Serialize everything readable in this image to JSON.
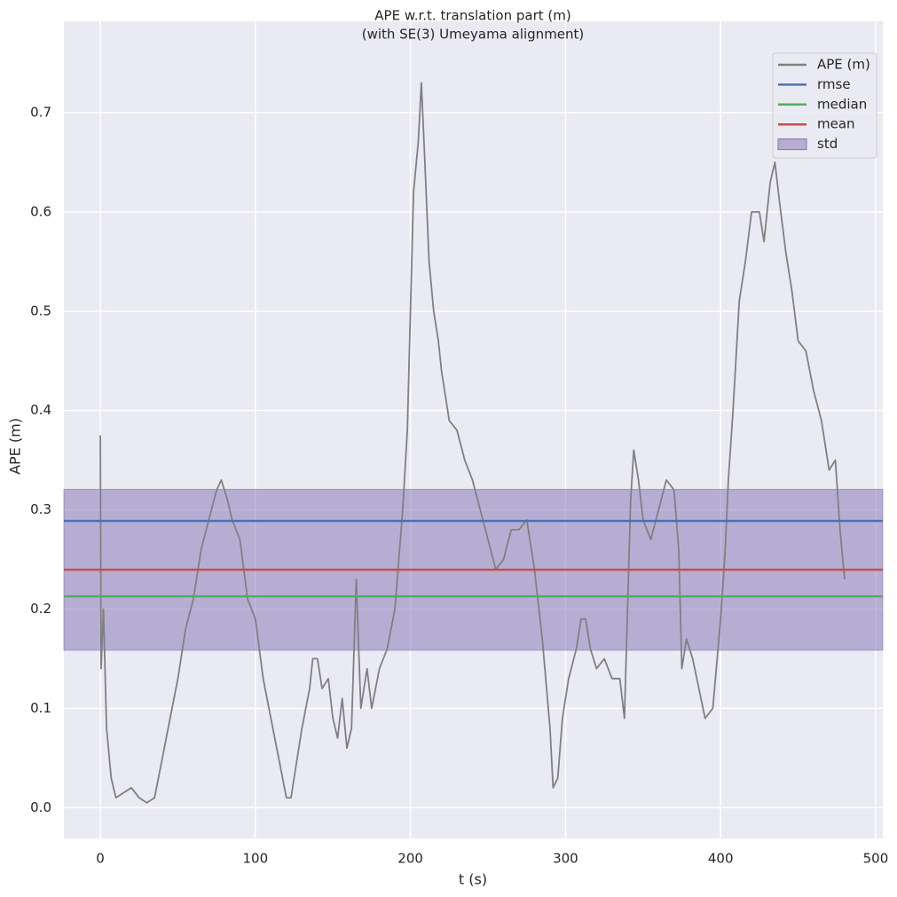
{
  "chart_data": {
    "type": "line",
    "title": "APE w.r.t. translation part (m)",
    "subtitle": "(with SE(3) Umeyama alignment)",
    "x_label": "t (s)",
    "y_label": "APE (m)",
    "xlim": [
      -23.5,
      504.6
    ],
    "ylim": [
      -0.031,
      0.792
    ],
    "xticks": [
      0,
      100,
      200,
      300,
      400,
      500
    ],
    "yticks": [
      {
        "value": 0,
        "label": "0.0"
      },
      0.1,
      0.2,
      0.3,
      0.4,
      0.5,
      0.6,
      0.7
    ],
    "grid": true,
    "legend": "upper right",
    "series": [
      {
        "name": "APE (m)",
        "color": "#808080",
        "x": [
          0,
          0.5,
          2,
          4,
          7,
          10,
          15,
          20,
          25,
          30,
          35,
          40,
          45,
          50,
          55,
          60,
          65,
          70,
          75,
          78,
          82,
          85,
          90,
          95,
          100,
          105,
          110,
          115,
          120,
          123,
          127,
          130,
          135,
          137,
          140,
          143,
          147,
          150,
          153,
          156,
          159,
          162,
          165,
          168,
          172,
          175,
          180,
          185,
          190,
          195,
          198,
          200,
          202,
          205,
          207,
          209,
          212,
          215,
          218,
          220,
          225,
          230,
          235,
          240,
          245,
          250,
          255,
          260,
          265,
          270,
          275,
          280,
          285,
          290,
          292,
          295,
          298,
          302,
          307,
          310,
          313,
          316,
          320,
          325,
          330,
          335,
          338,
          340,
          342,
          344,
          347,
          350,
          355,
          360,
          365,
          370,
          373,
          375,
          378,
          382,
          386,
          390,
          395,
          400,
          403,
          405,
          408,
          412,
          416,
          420,
          425,
          428,
          432,
          435,
          438,
          442,
          446,
          450,
          455,
          460,
          465,
          470,
          474,
          477,
          480
        ],
        "values": [
          0.375,
          0.14,
          0.2,
          0.08,
          0.03,
          0.01,
          0.015,
          0.02,
          0.01,
          0.005,
          0.01,
          0.05,
          0.09,
          0.13,
          0.18,
          0.21,
          0.26,
          0.29,
          0.32,
          0.33,
          0.31,
          0.29,
          0.27,
          0.21,
          0.19,
          0.13,
          0.09,
          0.05,
          0.01,
          0.01,
          0.05,
          0.08,
          0.12,
          0.15,
          0.15,
          0.12,
          0.13,
          0.09,
          0.07,
          0.11,
          0.06,
          0.08,
          0.23,
          0.1,
          0.14,
          0.1,
          0.14,
          0.16,
          0.2,
          0.3,
          0.38,
          0.5,
          0.62,
          0.67,
          0.73,
          0.66,
          0.55,
          0.5,
          0.47,
          0.44,
          0.39,
          0.38,
          0.35,
          0.33,
          0.3,
          0.27,
          0.24,
          0.25,
          0.28,
          0.28,
          0.29,
          0.24,
          0.17,
          0.08,
          0.02,
          0.03,
          0.09,
          0.13,
          0.16,
          0.19,
          0.19,
          0.16,
          0.14,
          0.15,
          0.13,
          0.13,
          0.09,
          0.2,
          0.31,
          0.36,
          0.33,
          0.29,
          0.27,
          0.3,
          0.33,
          0.32,
          0.26,
          0.14,
          0.17,
          0.15,
          0.12,
          0.09,
          0.1,
          0.19,
          0.26,
          0.33,
          0.4,
          0.51,
          0.55,
          0.6,
          0.6,
          0.57,
          0.63,
          0.65,
          0.61,
          0.56,
          0.52,
          0.47,
          0.46,
          0.42,
          0.39,
          0.34,
          0.35,
          0.28,
          0.23
        ]
      }
    ],
    "stats": [
      {
        "name": "rmse",
        "value": 0.2888,
        "color": "#4c72b0"
      },
      {
        "name": "median",
        "value": 0.2128,
        "color": "#55a868"
      },
      {
        "name": "mean",
        "value": 0.2396,
        "color": "#c44e52"
      }
    ],
    "std": {
      "name": "std",
      "value": 0.081,
      "color": "#8172b2"
    }
  }
}
